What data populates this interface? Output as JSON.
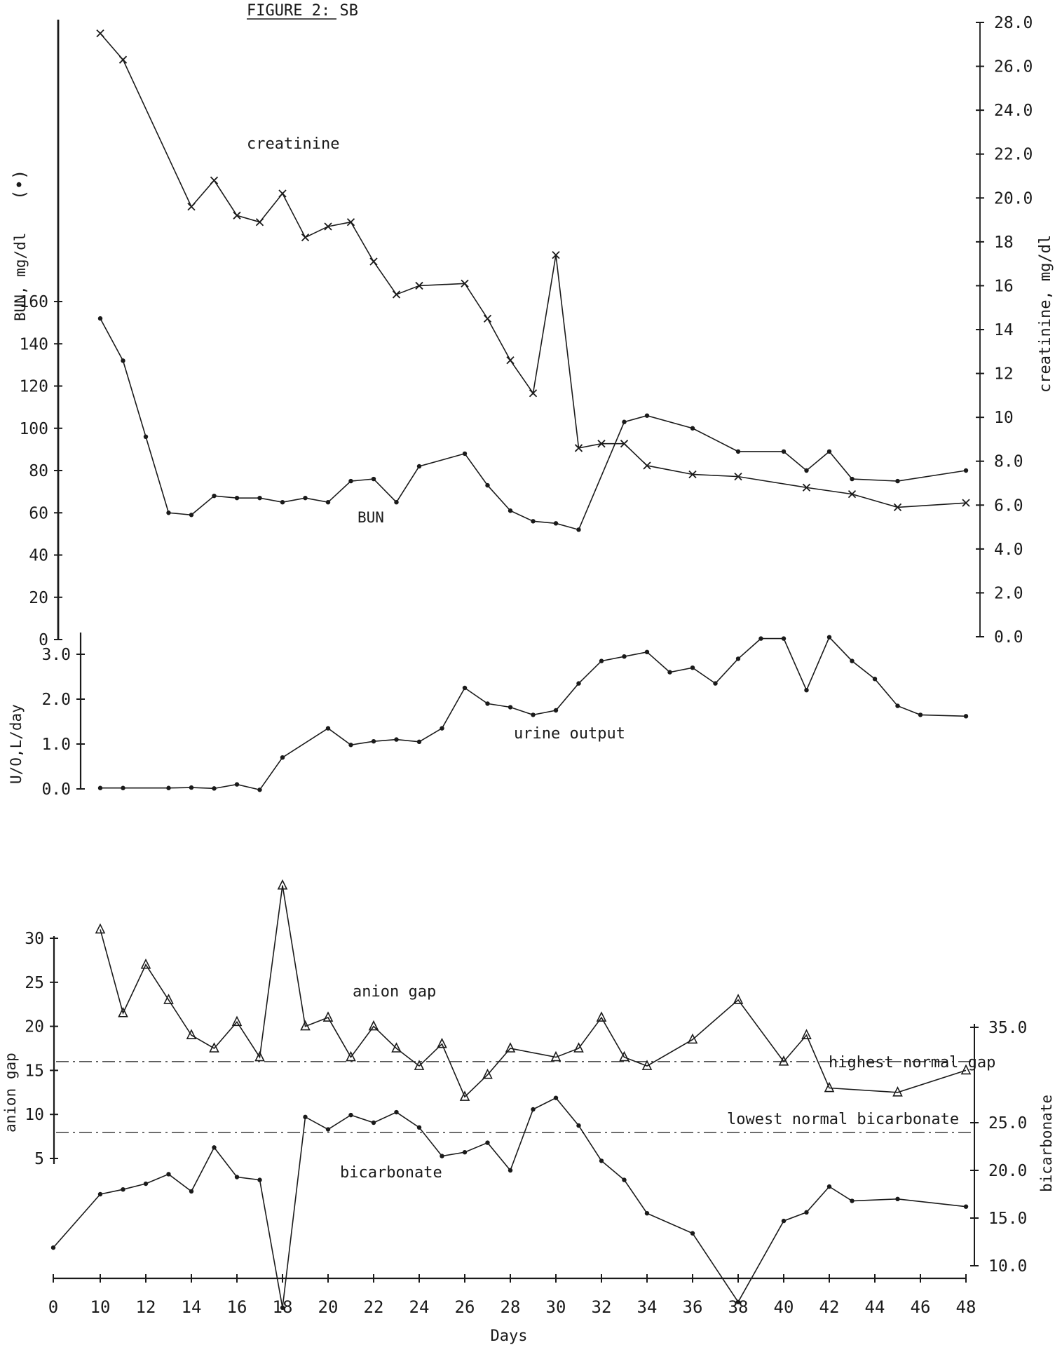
{
  "chart_data": {
    "type": "line",
    "title": "FIGURE 2: SB",
    "xlabel": "Days",
    "x_ticks": [
      0,
      10,
      12,
      14,
      16,
      18,
      20,
      22,
      24,
      26,
      28,
      30,
      32,
      34,
      36,
      38,
      40,
      42,
      44,
      46,
      48
    ],
    "xlim": [
      0,
      48
    ],
    "panels": {
      "renal": {
        "left_axis": {
          "label": "BUN, mg/dl",
          "marker": "(•)",
          "ylim": [
            0,
            160
          ],
          "ticks": [
            {
              "value": 0,
              "label": "0"
            },
            {
              "value": 20,
              "label": "20"
            },
            {
              "value": 40,
              "label": "40"
            },
            {
              "value": 60,
              "label": "60"
            },
            {
              "value": 80,
              "label": "80"
            },
            {
              "value": 100,
              "label": "100"
            },
            {
              "value": 120,
              "label": "120"
            },
            {
              "value": 140,
              "label": "140"
            },
            {
              "value": 160,
              "label": "160"
            }
          ]
        },
        "right_axis": {
          "label": "creatinine, mg/dl",
          "ylim": [
            0,
            28
          ],
          "ticks": [
            {
              "value": 0,
              "label": "0.0"
            },
            {
              "value": 2,
              "label": "2.0"
            },
            {
              "value": 4,
              "label": "4.0"
            },
            {
              "value": 6,
              "label": "6.0"
            },
            {
              "value": 8,
              "label": "8.0"
            },
            {
              "value": 10,
              "label": "10"
            },
            {
              "value": 12,
              "label": "12"
            },
            {
              "value": 14,
              "label": "14"
            },
            {
              "value": 16,
              "label": "16"
            },
            {
              "value": 18,
              "label": "18"
            },
            {
              "value": 20,
              "label": "20.0"
            },
            {
              "value": 22,
              "label": "22.0"
            },
            {
              "value": 24,
              "label": "24.0"
            },
            {
              "value": 26,
              "label": "26.0"
            },
            {
              "value": 28,
              "label": "28.0"
            }
          ]
        },
        "series": [
          {
            "name": "creatinine",
            "axis": "right",
            "marker": "x",
            "x": [
              10,
              11,
              14,
              15,
              16,
              17,
              18,
              19,
              20,
              21,
              22,
              23,
              24,
              26,
              27,
              28,
              29,
              30,
              31,
              32,
              33,
              34,
              36,
              38,
              41,
              43,
              45,
              48
            ],
            "y": [
              27.5,
              26.3,
              19.6,
              20.8,
              19.2,
              18.9,
              20.2,
              18.2,
              18.7,
              18.9,
              17.1,
              15.6,
              16.0,
              16.1,
              14.5,
              12.6,
              11.1,
              17.4,
              8.6,
              8.8,
              8.8,
              7.8,
              7.4,
              7.3,
              6.8,
              6.5,
              5.9,
              6.1
            ]
          },
          {
            "name": "BUN",
            "axis": "left",
            "marker": "dot",
            "x": [
              10,
              11,
              12,
              13,
              14,
              15,
              16,
              17,
              18,
              19,
              20,
              21,
              22,
              23,
              24,
              26,
              27,
              28,
              29,
              30,
              31,
              33,
              34,
              36,
              38,
              40,
              41,
              42,
              43,
              45,
              48
            ],
            "y": [
              152,
              132,
              96,
              60,
              59,
              68,
              67,
              67,
              65,
              67,
              65,
              75,
              76,
              65,
              82,
              88,
              73,
              61,
              56,
              55,
              52,
              103,
              106,
              100,
              89,
              89,
              80,
              89,
              76,
              75,
              80
            ]
          }
        ],
        "annotations": [
          {
            "text": "creatinine"
          },
          {
            "text": "BUN"
          }
        ]
      },
      "urine": {
        "left_axis": {
          "label": "U/O,L/day",
          "ylim": [
            0,
            3.2
          ],
          "ticks": [
            {
              "value": 0,
              "label": "0.0"
            },
            {
              "value": 1,
              "label": "1.0"
            },
            {
              "value": 2,
              "label": "2.0"
            },
            {
              "value": 3,
              "label": "3.0"
            }
          ]
        },
        "series": [
          {
            "name": "urine output",
            "marker": "dot",
            "x": [
              10,
              11,
              13,
              14,
              15,
              16,
              17,
              18,
              20,
              21,
              22,
              23,
              24,
              25,
              26,
              27,
              28,
              29,
              30,
              31,
              32,
              33,
              34,
              35,
              36,
              37,
              38,
              39,
              40,
              41,
              42,
              43,
              44,
              45,
              46,
              48
            ],
            "y": [
              0.02,
              0.02,
              0.02,
              0.03,
              0.01,
              0.1,
              -0.02,
              0.7,
              1.35,
              0.98,
              1.06,
              1.1,
              1.05,
              1.35,
              2.25,
              1.9,
              1.82,
              1.65,
              1.75,
              2.35,
              2.85,
              2.95,
              3.05,
              2.6,
              2.7,
              2.35,
              2.9,
              3.35,
              3.35,
              2.2,
              3.38,
              2.85,
              2.45,
              1.85,
              1.65,
              1.62
            ]
          }
        ],
        "annotations": [
          {
            "text": "urine output"
          }
        ]
      },
      "acid_base": {
        "left_axis": {
          "label": "anion gap",
          "ylim": [
            0,
            32
          ],
          "ticks": [
            {
              "value": 5,
              "label": "5"
            },
            {
              "value": 10,
              "label": "10"
            },
            {
              "value": 15,
              "label": "15"
            },
            {
              "value": 20,
              "label": "20"
            },
            {
              "value": 25,
              "label": "25"
            },
            {
              "value": 30,
              "label": "30"
            }
          ]
        },
        "right_axis": {
          "label": "bicarbonate",
          "ylim": [
            5,
            35
          ],
          "ticks": [
            {
              "value": 10,
              "label": "10.0"
            },
            {
              "value": 15,
              "label": "15.0"
            },
            {
              "value": 20,
              "label": "20.0"
            },
            {
              "value": 25,
              "label": "25.0"
            },
            {
              "value": 35,
              "label": "35.0"
            }
          ]
        },
        "series": [
          {
            "name": "anion gap",
            "axis": "left",
            "marker": "triangle",
            "x": [
              10,
              11,
              12,
              13,
              14,
              15,
              16,
              17,
              18,
              19,
              20,
              21,
              22,
              23,
              24,
              25,
              26,
              27,
              28,
              30,
              31,
              32,
              33,
              34,
              36,
              38,
              40,
              41,
              42,
              45,
              48
            ],
            "y": [
              31,
              21.5,
              27,
              23,
              19,
              17.5,
              20.5,
              16.5,
              36,
              20,
              21,
              16.5,
              20,
              17.5,
              15.5,
              18,
              12,
              14.5,
              17.5,
              16.5,
              17.5,
              21,
              16.5,
              15.5,
              18.5,
              23,
              16,
              19,
              13,
              12.5,
              15
            ]
          },
          {
            "name": "bicarbonate",
            "axis": "right",
            "marker": "dot",
            "x": [
              0,
              10,
              11,
              12,
              13,
              14,
              15,
              16,
              17,
              18,
              19,
              20,
              21,
              22,
              23,
              24,
              25,
              26,
              27,
              28,
              29,
              30,
              31,
              32,
              33,
              34,
              36,
              38,
              40,
              41,
              42,
              43,
              45,
              48
            ],
            "y": [
              11.9,
              17.5,
              18.0,
              18.6,
              19.6,
              17.8,
              22.4,
              19.3,
              19.0,
              5.6,
              25.6,
              24.3,
              25.8,
              25.0,
              26.1,
              24.5,
              21.5,
              21.9,
              22.9,
              20.0,
              26.4,
              27.6,
              24.7,
              21.0,
              19.0,
              15.5,
              13.4,
              6.2,
              14.7,
              15.6,
              18.3,
              16.8,
              17.0,
              16.2
            ]
          }
        ],
        "reference_lines": [
          {
            "label": "highest normal gap",
            "axis": "left",
            "y": 16
          },
          {
            "label": "lowest normal bicarbonate",
            "axis": "right",
            "y": 24
          }
        ],
        "annotations": [
          {
            "text": "anion gap"
          },
          {
            "text": "bicarbonate"
          }
        ]
      }
    }
  }
}
